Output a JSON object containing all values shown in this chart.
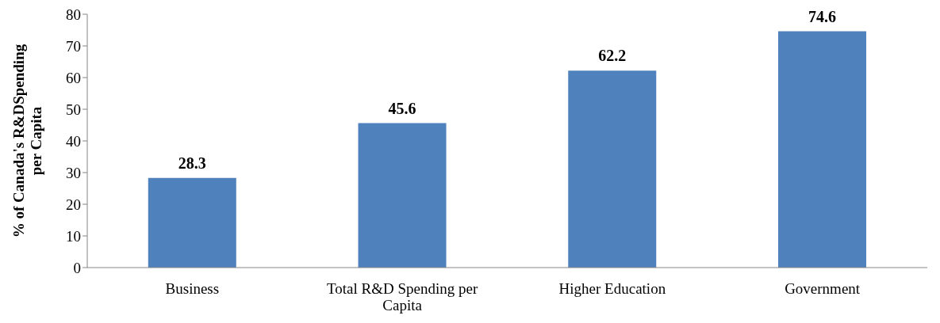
{
  "chart_data": {
    "type": "bar",
    "ylabel": "% of Canada's R&DSpending per Capita",
    "categories": [
      "Business",
      "Total R&D Spending per Capita",
      "Higher Education",
      "Government"
    ],
    "values": [
      28.3,
      45.6,
      62.2,
      74.6
    ],
    "color": "#4f81bd",
    "ylim": [
      0,
      80
    ],
    "yticks": [
      0,
      10,
      20,
      30,
      40,
      50,
      60,
      70,
      80
    ],
    "data_labels": true
  }
}
